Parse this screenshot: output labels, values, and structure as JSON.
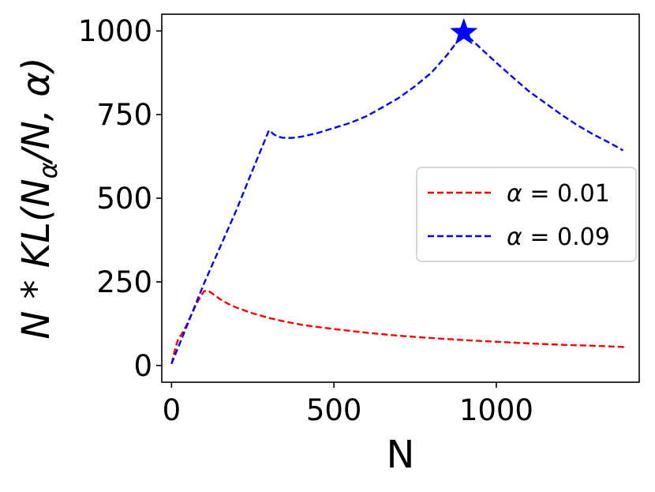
{
  "chart_data": {
    "type": "line",
    "title": "",
    "xlabel": "N",
    "ylabel_parts": {
      "prefix": "N * KL(",
      "sub_base": "N",
      "sub_index": "α",
      "suffix": "/N, α)"
    },
    "xlim": [
      -30,
      1440
    ],
    "ylim": [
      -50,
      1050
    ],
    "xticks": [
      0,
      500,
      1000
    ],
    "xtick_labels": [
      "0",
      "500",
      "1000"
    ],
    "yticks": [
      0,
      250,
      500,
      750,
      1000
    ],
    "ytick_labels": [
      "0",
      "250",
      "500",
      "750",
      "1000"
    ],
    "grid": false,
    "legend_position": "center-right",
    "series": [
      {
        "name": "α = 0.01",
        "legend_symbol": "α",
        "legend_value": "= 0.01",
        "color": "#ff0000",
        "style": "dashed",
        "x": [
          0,
          10,
          20,
          30,
          45,
          60,
          80,
          100,
          112,
          130,
          150,
          175,
          200,
          250,
          300,
          350,
          400,
          450,
          500,
          600,
          700,
          800,
          900,
          1000,
          1100,
          1200,
          1300,
          1400
        ],
        "y": [
          5,
          45,
          78,
          92,
          118,
          150,
          190,
          222,
          224,
          212,
          198,
          184,
          173,
          156,
          142,
          131,
          122,
          115,
          109,
          98,
          89,
          82,
          76,
          71,
          66,
          62,
          59,
          55
        ]
      },
      {
        "name": "α = 0.09",
        "legend_symbol": "α",
        "legend_value": "= 0.09",
        "color": "#0000ff",
        "style": "dashed",
        "x": [
          0,
          50,
          100,
          150,
          200,
          250,
          300,
          305,
          312,
          325,
          340,
          360,
          380,
          400,
          450,
          500,
          550,
          600,
          650,
          700,
          750,
          800,
          850,
          900,
          950,
          1000,
          1050,
          1100,
          1150,
          1200,
          1250,
          1300,
          1350,
          1390
        ],
        "y": [
          5,
          125,
          245,
          355,
          465,
          585,
          703,
          700,
          693,
          685,
          681,
          680,
          681,
          684,
          695,
          710,
          725,
          745,
          772,
          800,
          835,
          875,
          930,
          995,
          950,
          905,
          862,
          820,
          785,
          750,
          718,
          690,
          665,
          643
        ]
      }
    ],
    "annotations": [
      {
        "type": "star-marker",
        "x": 900,
        "y": 995,
        "color": "#0000ff"
      }
    ]
  }
}
